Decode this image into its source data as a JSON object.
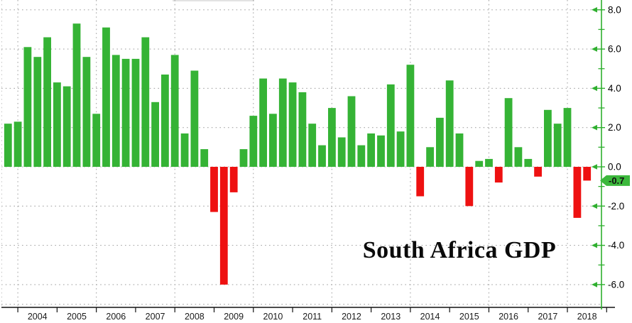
{
  "chart_data": {
    "type": "bar",
    "title": "South Africa GDP",
    "x": [
      "2003 Q3",
      "2003 Q4",
      "2004 Q1",
      "2004 Q2",
      "2004 Q3",
      "2004 Q4",
      "2005 Q1",
      "2005 Q2",
      "2005 Q3",
      "2005 Q4",
      "2006 Q1",
      "2006 Q2",
      "2006 Q3",
      "2006 Q4",
      "2007 Q1",
      "2007 Q2",
      "2007 Q3",
      "2007 Q4",
      "2008 Q1",
      "2008 Q2",
      "2008 Q3",
      "2008 Q4",
      "2009 Q1",
      "2009 Q2",
      "2009 Q3",
      "2009 Q4",
      "2010 Q1",
      "2010 Q2",
      "2010 Q3",
      "2010 Q4",
      "2011 Q1",
      "2011 Q2",
      "2011 Q3",
      "2011 Q4",
      "2012 Q1",
      "2012 Q2",
      "2012 Q3",
      "2012 Q4",
      "2013 Q1",
      "2013 Q2",
      "2013 Q3",
      "2013 Q4",
      "2014 Q1",
      "2014 Q2",
      "2014 Q3",
      "2014 Q4",
      "2015 Q1",
      "2015 Q2",
      "2015 Q3",
      "2015 Q4",
      "2016 Q1",
      "2016 Q2",
      "2016 Q3",
      "2016 Q4",
      "2017 Q1",
      "2017 Q2",
      "2017 Q3",
      "2017 Q4",
      "2018 Q1",
      "2018 Q2"
    ],
    "values": [
      2.2,
      2.3,
      6.1,
      5.6,
      6.6,
      4.3,
      4.1,
      7.3,
      5.6,
      2.7,
      7.1,
      5.7,
      5.5,
      5.5,
      6.6,
      3.3,
      4.7,
      5.7,
      1.7,
      4.9,
      0.9,
      -2.3,
      -6.0,
      -1.3,
      0.9,
      2.6,
      4.5,
      2.7,
      4.5,
      4.3,
      3.8,
      2.2,
      1.1,
      3.0,
      1.5,
      3.6,
      1.1,
      1.7,
      1.6,
      4.2,
      1.8,
      5.2,
      -1.5,
      1.0,
      2.5,
      4.4,
      1.7,
      -2.0,
      0.3,
      0.4,
      -0.8,
      3.5,
      1.0,
      0.4,
      -0.5,
      2.9,
      2.2,
      3.0,
      -2.6,
      -0.7
    ],
    "x_tick_labels": [
      "2004",
      "2005",
      "2006",
      "2007",
      "2008",
      "2009",
      "2010",
      "2011",
      "2012",
      "2013",
      "2014",
      "2015",
      "2016",
      "2017",
      "2018"
    ],
    "y_ticks": [
      8,
      6,
      4,
      2,
      0,
      -2,
      -4,
      -6
    ],
    "y_tick_labels": [
      "8.0",
      "6.0",
      "4.0",
      "2.0",
      "0.0",
      "-2.0",
      "-4.0",
      "-6.0"
    ],
    "y_minor_ticks": [
      7,
      5,
      3,
      1,
      -1,
      -3,
      -5
    ],
    "ylim": [
      -7.2,
      8.5
    ],
    "last_value_label": "-0.7",
    "legend_position": "none",
    "grid": "dotted gray; horizontal every 2 units, vertical every 2 years",
    "colors": {
      "positive_bar": "#35b335",
      "negative_bar": "#ee1111",
      "axis_green": "#2faf2f",
      "axis_black": "#111111",
      "gridline": "#a8a8a8",
      "badge_bg": "#3cb83c",
      "badge_text": "#111111",
      "background": "#ffffff"
    }
  }
}
